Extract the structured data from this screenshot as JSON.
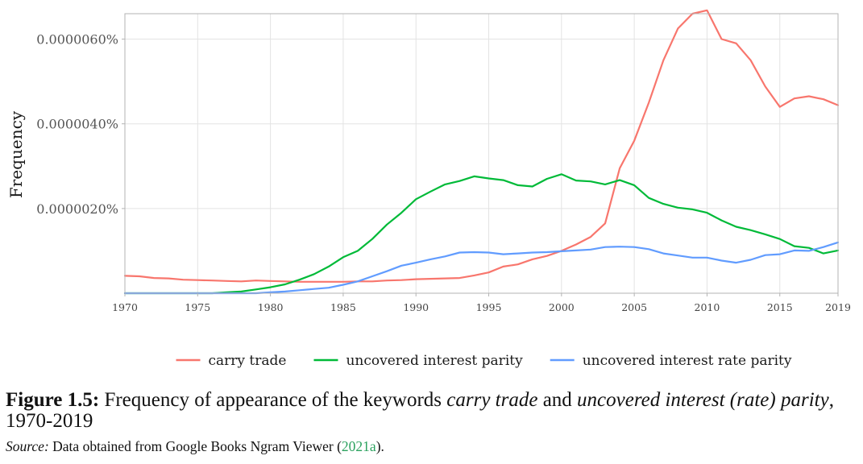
{
  "chart_data": {
    "type": "line",
    "ylabel": "Frequency",
    "xlim": [
      1970,
      2019
    ],
    "ylim": [
      0,
      6.6e-06
    ],
    "x_ticks": [
      1970,
      1975,
      1980,
      1985,
      1990,
      1995,
      2000,
      2005,
      2010,
      2015,
      2019
    ],
    "y_ticks": [
      {
        "value": 2e-06,
        "label": "0.0000020%"
      },
      {
        "value": 4e-06,
        "label": "0.0000040%"
      },
      {
        "value": 6e-06,
        "label": "0.0000060%"
      }
    ],
    "grid": true,
    "legend_position": "bottom",
    "series": [
      {
        "name": "carry trade",
        "color": "#f8766d",
        "x": [
          1970,
          1971,
          1972,
          1973,
          1974,
          1975,
          1976,
          1977,
          1978,
          1979,
          1980,
          1981,
          1982,
          1983,
          1984,
          1985,
          1986,
          1987,
          1988,
          1989,
          1990,
          1991,
          1992,
          1993,
          1994,
          1995,
          1996,
          1997,
          1998,
          1999,
          2000,
          2001,
          2002,
          2003,
          2004,
          2005,
          2006,
          2007,
          2008,
          2009,
          2010,
          2011,
          2012,
          2013,
          2014,
          2015,
          2016,
          2017,
          2018,
          2019
        ],
        "y": [
          4.1e-07,
          4e-07,
          3.6e-07,
          3.5e-07,
          3.2e-07,
          3.1e-07,
          3e-07,
          2.9e-07,
          2.8e-07,
          3e-07,
          2.9e-07,
          2.8e-07,
          2.7e-07,
          2.7e-07,
          2.7e-07,
          2.7e-07,
          2.8e-07,
          2.8e-07,
          3e-07,
          3.1e-07,
          3.3e-07,
          3.4e-07,
          3.5e-07,
          3.6e-07,
          4.2e-07,
          4.9e-07,
          6.3e-07,
          6.8e-07,
          8e-07,
          8.8e-07,
          1e-06,
          1.15e-06,
          1.33e-06,
          1.65e-06,
          2.95e-06,
          3.6e-06,
          4.5e-06,
          5.5e-06,
          6.25e-06,
          6.6e-06,
          6.68e-06,
          6e-06,
          5.9e-06,
          5.5e-06,
          4.88e-06,
          4.4e-06,
          4.6e-06,
          4.65e-06,
          4.58e-06,
          4.44e-06
        ]
      },
      {
        "name": "uncovered interest parity",
        "color": "#00ba38",
        "x": [
          1970,
          1971,
          1972,
          1973,
          1974,
          1975,
          1976,
          1977,
          1978,
          1979,
          1980,
          1981,
          1982,
          1983,
          1984,
          1985,
          1986,
          1987,
          1988,
          1989,
          1990,
          1991,
          1992,
          1993,
          1994,
          1995,
          1996,
          1997,
          1998,
          1999,
          2000,
          2001,
          2002,
          2003,
          2004,
          2005,
          2006,
          2007,
          2008,
          2009,
          2010,
          2011,
          2012,
          2013,
          2014,
          2015,
          2016,
          2017,
          2018,
          2019
        ],
        "y": [
          0,
          0,
          0,
          0,
          0,
          0,
          0,
          2e-08,
          4e-08,
          9e-08,
          1.4e-07,
          2.1e-07,
          3.2e-07,
          4.5e-07,
          6.3e-07,
          8.5e-07,
          1e-06,
          1.28e-06,
          1.62e-06,
          1.9e-06,
          2.22e-06,
          2.4e-06,
          2.57e-06,
          2.65e-06,
          2.76e-06,
          2.71e-06,
          2.67e-06,
          2.55e-06,
          2.52e-06,
          2.7e-06,
          2.81e-06,
          2.66e-06,
          2.64e-06,
          2.57e-06,
          2.67e-06,
          2.55e-06,
          2.25e-06,
          2.11e-06,
          2.02e-06,
          1.98e-06,
          1.9e-06,
          1.72e-06,
          1.57e-06,
          1.49e-06,
          1.39e-06,
          1.28e-06,
          1.11e-06,
          1.07e-06,
          9.4e-07,
          1.01e-06
        ]
      },
      {
        "name": "uncovered interest rate parity",
        "color": "#619cff",
        "x": [
          1970,
          1971,
          1972,
          1973,
          1974,
          1975,
          1976,
          1977,
          1978,
          1979,
          1980,
          1981,
          1982,
          1983,
          1984,
          1985,
          1986,
          1987,
          1988,
          1989,
          1990,
          1991,
          1992,
          1993,
          1994,
          1995,
          1996,
          1997,
          1998,
          1999,
          2000,
          2001,
          2002,
          2003,
          2004,
          2005,
          2006,
          2007,
          2008,
          2009,
          2010,
          2011,
          2012,
          2013,
          2014,
          2015,
          2016,
          2017,
          2018,
          2019
        ],
        "y": [
          0,
          0,
          0,
          0,
          0,
          0,
          0,
          0,
          0,
          0,
          2e-08,
          4e-08,
          7e-08,
          1e-07,
          1.3e-07,
          2e-07,
          2.8e-07,
          4e-07,
          5.2e-07,
          6.5e-07,
          7.2e-07,
          8e-07,
          8.7e-07,
          9.6e-07,
          9.7e-07,
          9.6e-07,
          9.2e-07,
          9.4e-07,
          9.6e-07,
          9.7e-07,
          9.9e-07,
          1.01e-06,
          1.03e-06,
          1.09e-06,
          1.1e-06,
          1.09e-06,
          1.04e-06,
          9.4e-07,
          8.9e-07,
          8.4e-07,
          8.4e-07,
          7.7e-07,
          7.2e-07,
          7.9e-07,
          9e-07,
          9.2e-07,
          1.01e-06,
          1e-06,
          1.09e-06,
          1.2e-06
        ]
      }
    ]
  },
  "caption": {
    "label": "Figure 1.5:",
    "text_before": "Frequency of appearance of the keywords",
    "term1": "carry trade",
    "text_mid": "and",
    "term2": "uncovered interest (rate) parity",
    "text_after": ", 1970-2019"
  },
  "source": {
    "label": "Source:",
    "text": "Data obtained from Google Books Ngram Viewer (",
    "link": "2021a",
    "text_after": ")."
  }
}
